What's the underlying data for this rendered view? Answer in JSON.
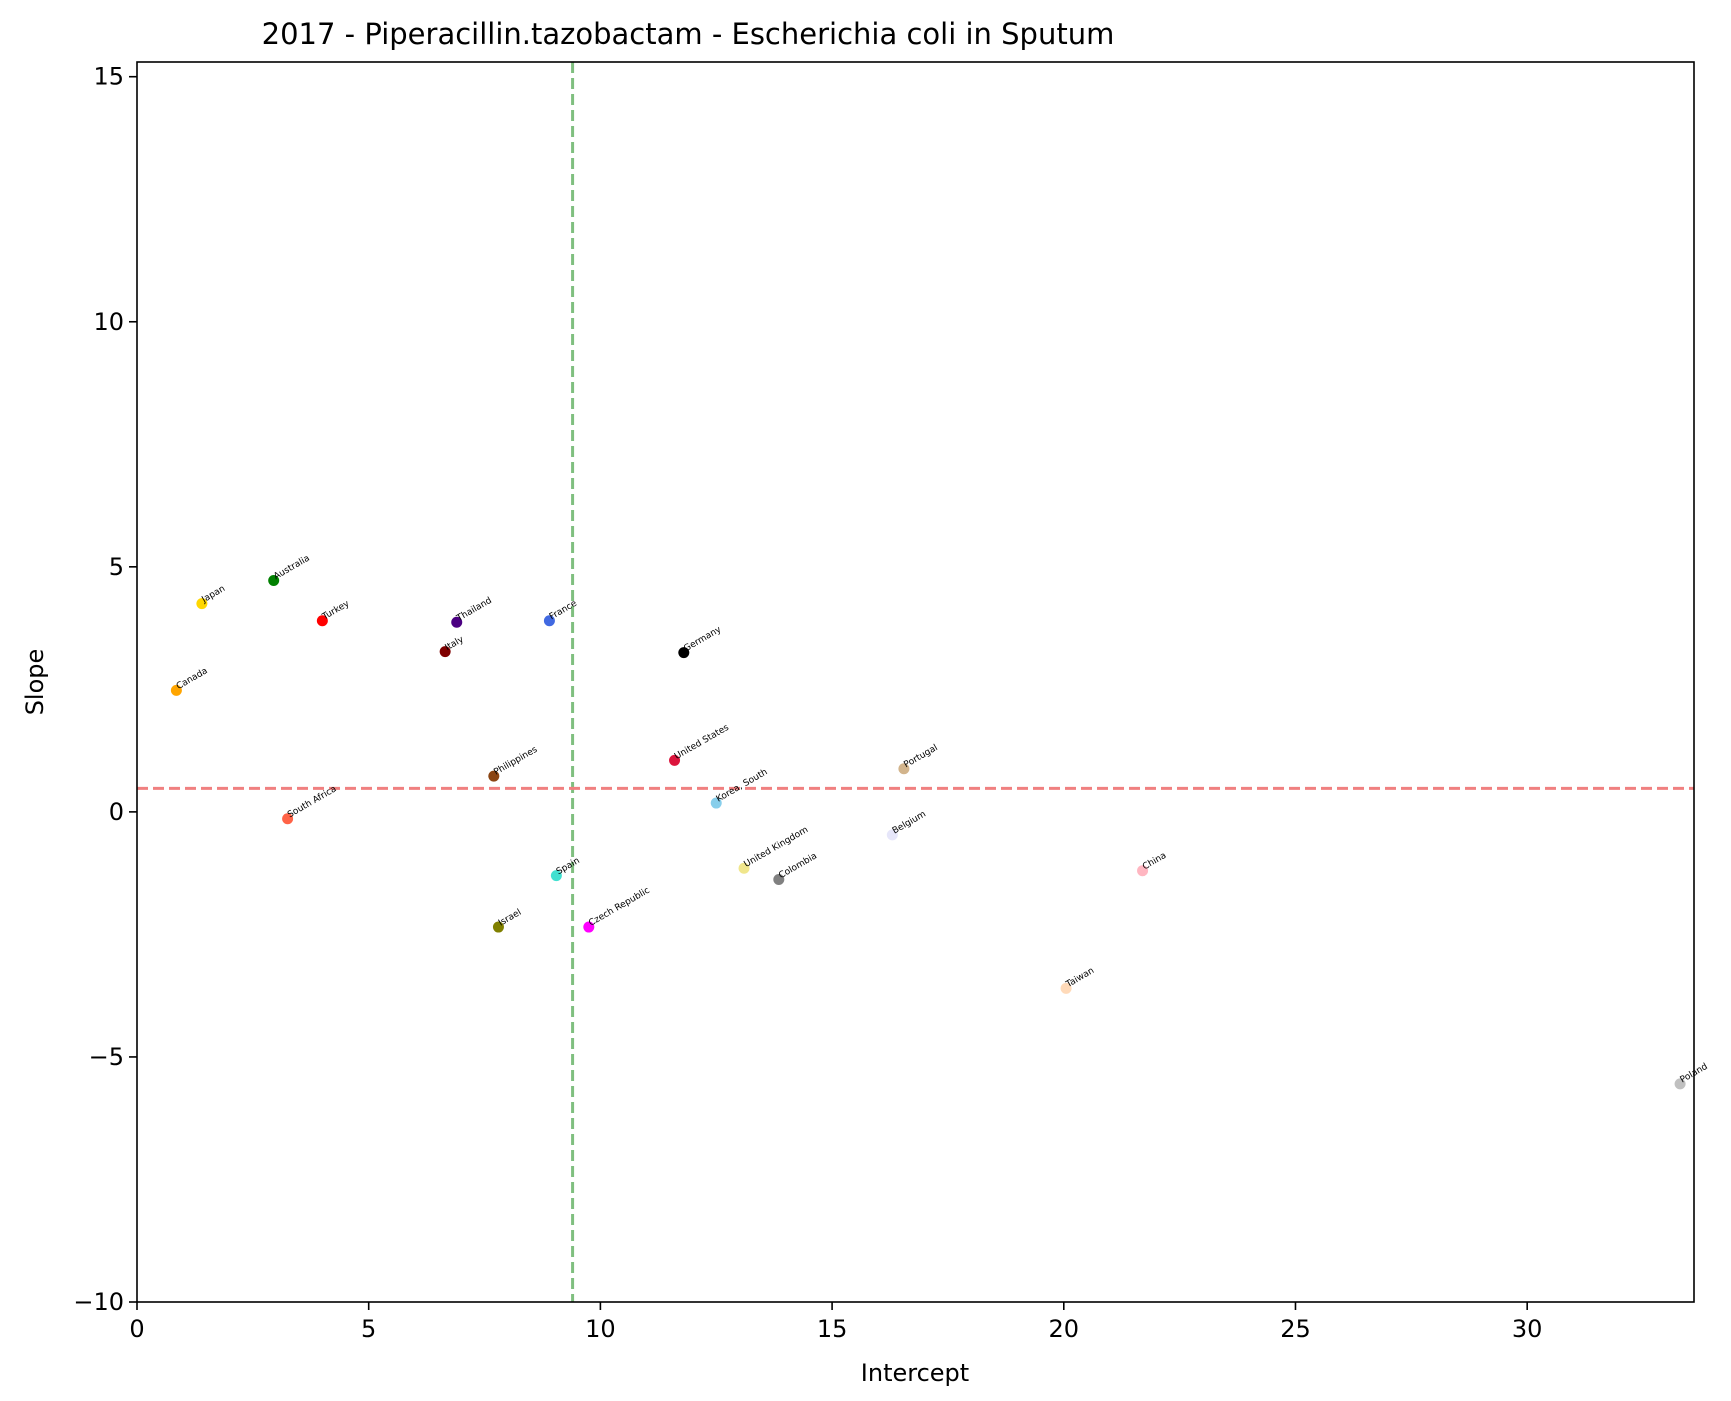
{
  "chart_data": {
    "type": "scatter",
    "title": "2017 - Piperacillin.tazobactam - Escherichia coli in Sputum",
    "xlabel": "Intercept",
    "ylabel": "Slope",
    "xlim": [
      0,
      33.6
    ],
    "ylim": [
      -10,
      15.3
    ],
    "xticks": [
      0,
      5,
      10,
      15,
      20,
      25,
      30
    ],
    "yticks": [
      -10,
      -5,
      0,
      5,
      10,
      15
    ],
    "xtick_labels": [
      "0",
      "5",
      "10",
      "15",
      "20",
      "25",
      "30"
    ],
    "ytick_labels": [
      "−10",
      "−5",
      "0",
      "5",
      "10",
      "15"
    ],
    "reference_lines": {
      "vertical_x": 9.4,
      "vertical_color": "#7fbf7f",
      "horizontal_y": 0.48,
      "horizontal_color": "#f08080"
    },
    "points": [
      {
        "label": "Japan",
        "x": 1.4,
        "y": 4.25,
        "color": "#ffd700"
      },
      {
        "label": "Australia",
        "x": 2.95,
        "y": 4.72,
        "color": "#008000"
      },
      {
        "label": "Turkey",
        "x": 4.0,
        "y": 3.9,
        "color": "#ff0000"
      },
      {
        "label": "Thailand",
        "x": 6.9,
        "y": 3.87,
        "color": "#4b0082"
      },
      {
        "label": "Italy",
        "x": 6.65,
        "y": 3.27,
        "color": "#800000"
      },
      {
        "label": "France",
        "x": 8.9,
        "y": 3.9,
        "color": "#4169e1"
      },
      {
        "label": "Germany",
        "x": 11.8,
        "y": 3.25,
        "color": "#000000"
      },
      {
        "label": "Canada",
        "x": 0.85,
        "y": 2.48,
        "color": "#ffa500"
      },
      {
        "label": "Philippines",
        "x": 7.7,
        "y": 0.73,
        "color": "#8b4513"
      },
      {
        "label": "United States",
        "x": 11.6,
        "y": 1.05,
        "color": "#dc143c"
      },
      {
        "label": "Portugal",
        "x": 16.55,
        "y": 0.88,
        "color": "#d2b48c"
      },
      {
        "label": "South Africa",
        "x": 3.25,
        "y": -0.14,
        "color": "#ff6347"
      },
      {
        "label": "Korea, South",
        "x": 12.5,
        "y": 0.18,
        "color": "#87ceeb"
      },
      {
        "label": "Belgium",
        "x": 16.3,
        "y": -0.47,
        "color": "#e6e6fa"
      },
      {
        "label": "Spain",
        "x": 9.05,
        "y": -1.3,
        "color": "#40e0d0"
      },
      {
        "label": "United Kingdom",
        "x": 13.1,
        "y": -1.15,
        "color": "#f0e68c"
      },
      {
        "label": "Colombia",
        "x": 13.85,
        "y": -1.38,
        "color": "#808080"
      },
      {
        "label": "China",
        "x": 21.7,
        "y": -1.2,
        "color": "#ffb6c1"
      },
      {
        "label": "Israel",
        "x": 7.8,
        "y": -2.35,
        "color": "#808000"
      },
      {
        "label": "Czech Republic",
        "x": 9.75,
        "y": -2.35,
        "color": "#ff00ff"
      },
      {
        "label": "Taiwan",
        "x": 20.05,
        "y": -3.6,
        "color": "#ffdab9"
      },
      {
        "label": "Poland",
        "x": 33.3,
        "y": -5.55,
        "color": "#c0c0c0"
      }
    ]
  }
}
